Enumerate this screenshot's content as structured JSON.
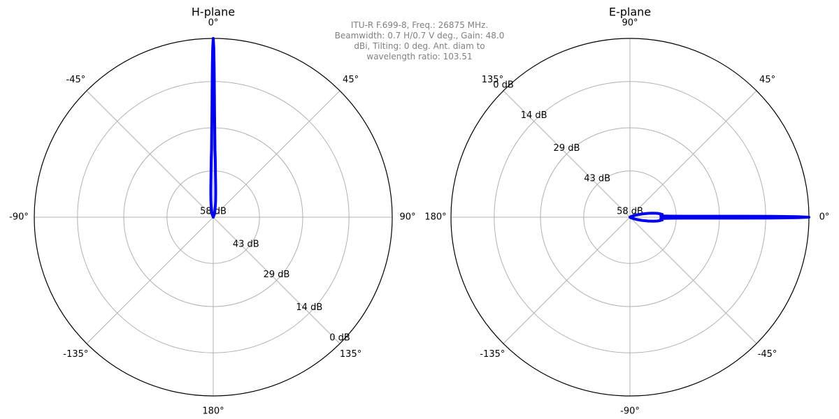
{
  "annotation": {
    "lines": [
      "ITU-R F.699-8, Freq.: 26875 MHz.",
      "Beamwidth: 0.7 H/0.7 V deg., Gain: 48.0",
      "dBi, Tilting: 0 deg. Ant. diam to",
      "wavelength ratio: 103.51"
    ]
  },
  "colors": {
    "pattern": "#0000ee",
    "grid": "#b0b0b0",
    "annotation": "#808080"
  },
  "chart_data": [
    {
      "type": "polar-line",
      "title": "H-plane",
      "theta_zero": "top",
      "theta_direction": "clockwise",
      "angle_tick_labels": [
        {
          "angle": 0,
          "label": "0°"
        },
        {
          "angle": 45,
          "label": "45°"
        },
        {
          "angle": 90,
          "label": "90°"
        },
        {
          "angle": 135,
          "label": "135°"
        },
        {
          "angle": 180,
          "label": "180°"
        },
        {
          "angle": 225,
          "label": "-135°"
        },
        {
          "angle": 270,
          "label": "-90°"
        },
        {
          "angle": 315,
          "label": "-45°"
        }
      ],
      "radial_tick_labels": [
        {
          "value": 58,
          "label": "58 dB"
        },
        {
          "value": 43,
          "label": "43 dB"
        },
        {
          "value": 29,
          "label": "29 dB"
        },
        {
          "value": 14,
          "label": "14 dB"
        },
        {
          "value": 0,
          "label": "0 dB"
        }
      ],
      "radial_label_angle": 135,
      "r_axis": {
        "center_value": 58,
        "edge_value": 0
      },
      "series": [
        {
          "angle_deg": [
            -90,
            -60,
            -30,
            -20,
            -15,
            -10,
            -8,
            -6,
            -5,
            -4,
            -3,
            -2.5,
            -2,
            -1.5,
            -1,
            -0.75,
            -0.5,
            -0.35,
            -0.2,
            0,
            0.2,
            0.35,
            0.5,
            0.75,
            1,
            1.5,
            2,
            2.5,
            3,
            4,
            5,
            6,
            8,
            10,
            15,
            20,
            30,
            60,
            90
          ],
          "attenuation_db": [
            58,
            58,
            58,
            57,
            56,
            54,
            52.5,
            50.5,
            49,
            47,
            44,
            42,
            39,
            36,
            30,
            25,
            16,
            9,
            3,
            0,
            3,
            9,
            16,
            25,
            30,
            36,
            39,
            42,
            44,
            47,
            49,
            50.5,
            52.5,
            54,
            56,
            57,
            58,
            58,
            58
          ]
        }
      ]
    },
    {
      "type": "polar-line",
      "title": "E-plane",
      "theta_zero": "right",
      "theta_direction": "counterclockwise",
      "angle_tick_labels": [
        {
          "angle": 0,
          "label": "0°"
        },
        {
          "angle": 45,
          "label": "45°"
        },
        {
          "angle": 90,
          "label": "90°"
        },
        {
          "angle": 135,
          "label": "135°"
        },
        {
          "angle": 180,
          "label": "180°"
        },
        {
          "angle": 225,
          "label": "-135°"
        },
        {
          "angle": 270,
          "label": "-90°"
        },
        {
          "angle": 315,
          "label": "-45°"
        }
      ],
      "radial_tick_labels": [
        {
          "value": 58,
          "label": "58 dB"
        },
        {
          "value": 43,
          "label": "43 dB"
        },
        {
          "value": 29,
          "label": "29 dB"
        },
        {
          "value": 14,
          "label": "14 dB"
        },
        {
          "value": 0,
          "label": "0 dB"
        }
      ],
      "radial_label_angle": 135,
      "r_axis": {
        "center_value": 58,
        "edge_value": 0
      },
      "series": [
        {
          "angle_deg": [
            -90,
            -60,
            -45,
            -30,
            -20,
            -15,
            -12,
            -10,
            -8,
            -6,
            -5,
            -4,
            -3,
            -2.5,
            -2,
            -1.5,
            -1,
            -0.75,
            -0.5,
            -0.35,
            -0.2,
            0,
            0.2,
            0.35,
            0.5,
            0.75,
            1,
            1.5,
            2,
            2.5,
            3,
            4,
            5,
            6,
            8,
            10,
            12,
            15,
            20,
            30,
            45,
            60,
            90
          ],
          "attenuation_db": [
            58,
            58,
            58,
            57.5,
            56,
            54,
            52,
            50.5,
            49,
            48,
            47.5,
            47.5,
            48,
            48,
            47,
            45,
            40,
            33,
            22,
            12,
            4,
            0,
            4,
            12,
            22,
            33,
            40,
            45,
            47,
            48,
            48,
            47.5,
            47.5,
            48,
            49,
            50.5,
            52,
            54,
            56,
            57.5,
            58,
            58,
            58
          ]
        }
      ]
    }
  ]
}
